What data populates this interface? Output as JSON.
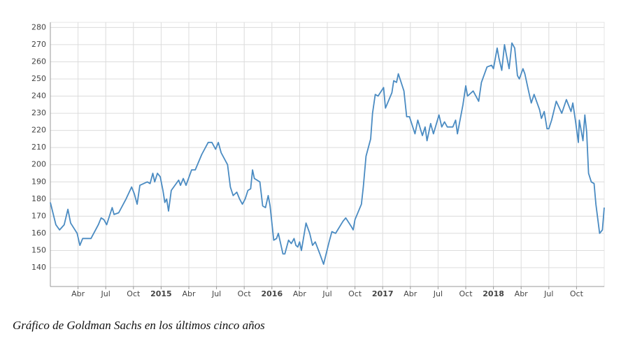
{
  "chart_data": {
    "type": "line",
    "color": "#4a8bc2",
    "grid": true,
    "caption": "Gráfico de Goldman Sachs en los últimos cinco años",
    "xlim": [
      0,
      60
    ],
    "ylim": [
      129,
      283
    ],
    "yticks": [
      140,
      150,
      160,
      170,
      180,
      190,
      200,
      210,
      220,
      230,
      240,
      250,
      260,
      270,
      280
    ],
    "xticks": [
      {
        "value": 3,
        "label": "Abr"
      },
      {
        "value": 6,
        "label": "Jul"
      },
      {
        "value": 9,
        "label": "Oct"
      },
      {
        "value": 12,
        "label": "2015"
      },
      {
        "value": 15,
        "label": "Abr"
      },
      {
        "value": 18,
        "label": "Jul"
      },
      {
        "value": 21,
        "label": "Oct"
      },
      {
        "value": 24,
        "label": "2016"
      },
      {
        "value": 27,
        "label": "Abr"
      },
      {
        "value": 30,
        "label": "Jul"
      },
      {
        "value": 33,
        "label": "Oct"
      },
      {
        "value": 36,
        "label": "2017"
      },
      {
        "value": 39,
        "label": "Abr"
      },
      {
        "value": 42,
        "label": "Jul"
      },
      {
        "value": 45,
        "label": "Oct"
      },
      {
        "value": 48,
        "label": "2018"
      },
      {
        "value": 51,
        "label": "Abr"
      },
      {
        "value": 54,
        "label": "Jul"
      },
      {
        "value": 57,
        "label": "Oct"
      }
    ],
    "x": [
      0,
      0.6,
      1.0,
      1.5,
      1.9,
      2.2,
      2.9,
      3.2,
      3.5,
      4.4,
      5.2,
      5.5,
      5.8,
      6.1,
      6.7,
      6.9,
      7.4,
      8.2,
      8.8,
      9.1,
      9.4,
      9.7,
      10.5,
      10.8,
      11.1,
      11.3,
      11.6,
      11.9,
      12.2,
      12.4,
      12.6,
      12.8,
      13.1,
      13.9,
      14.1,
      14.4,
      14.7,
      15.3,
      15.7,
      16.4,
      17.1,
      17.5,
      17.9,
      18.2,
      18.5,
      19.2,
      19.5,
      19.8,
      20.2,
      20.5,
      20.8,
      21.1,
      21.4,
      21.7,
      21.9,
      22.1,
      22.7,
      23.0,
      23.3,
      23.6,
      23.8,
      24.2,
      24.5,
      24.7,
      25.2,
      25.4,
      25.8,
      26.1,
      26.4,
      26.6,
      26.8,
      27.0,
      27.2,
      27.7,
      28.1,
      28.4,
      28.7,
      29.2,
      29.6,
      30.2,
      30.5,
      30.9,
      31.7,
      32.0,
      32.6,
      32.8,
      33.0,
      33.7,
      33.9,
      34.2,
      34.7,
      34.9,
      35.2,
      35.5,
      36.1,
      36.3,
      37.0,
      37.2,
      37.5,
      37.7,
      38.0,
      38.3,
      38.6,
      38.9,
      39.5,
      39.8,
      40.3,
      40.6,
      40.8,
      41.2,
      41.5,
      42.1,
      42.4,
      42.7,
      43.0,
      43.6,
      43.9,
      44.1,
      44.7,
      45.0,
      45.2,
      45.8,
      46.4,
      46.7,
      47.3,
      47.8,
      48.0,
      48.4,
      48.6,
      48.9,
      49.2,
      49.4,
      49.7,
      50.0,
      50.3,
      50.6,
      50.8,
      51.2,
      51.4,
      51.8,
      52.1,
      52.4,
      53.0,
      53.2,
      53.5,
      53.8,
      54.0,
      54.3,
      54.8,
      55.4,
      55.9,
      56.4,
      56.6,
      56.9,
      57.2,
      57.3,
      57.7,
      57.9,
      58.1,
      58.3,
      58.6,
      58.9,
      59.1,
      59.5,
      59.8,
      60.0
    ],
    "values": [
      178,
      165,
      162,
      165,
      174,
      166,
      160,
      153,
      157,
      157,
      165,
      169,
      168,
      165,
      175,
      171,
      172,
      180,
      187,
      183,
      177,
      188,
      190,
      189,
      195,
      190,
      195,
      193,
      185,
      178,
      180,
      173,
      185,
      191,
      188,
      192,
      188,
      197,
      197,
      206,
      213,
      213,
      209,
      213,
      207,
      200,
      187,
      182,
      184,
      180,
      177,
      180,
      185,
      186,
      197,
      192,
      190,
      176,
      175,
      182,
      176,
      156,
      157,
      160,
      148,
      148,
      156,
      154,
      157,
      153,
      152,
      155,
      150,
      166,
      160,
      153,
      155,
      148,
      142,
      155,
      161,
      160,
      167,
      169,
      164,
      162,
      168,
      177,
      187,
      205,
      215,
      230,
      241,
      240,
      245,
      233,
      242,
      249,
      248,
      253,
      248,
      243,
      228,
      228,
      218,
      226,
      217,
      222,
      214,
      224,
      218,
      229,
      222,
      225,
      222,
      222,
      226,
      218,
      235,
      246,
      240,
      243,
      237,
      248,
      257,
      258,
      256,
      268,
      262,
      255,
      270,
      264,
      256,
      271,
      268,
      252,
      250,
      256,
      253,
      243,
      236,
      241,
      232,
      227,
      231,
      221,
      221,
      226,
      237,
      230,
      238,
      231,
      236,
      225,
      213,
      226,
      214,
      229,
      219,
      195,
      190,
      189,
      177,
      160,
      162,
      175
    ]
  }
}
